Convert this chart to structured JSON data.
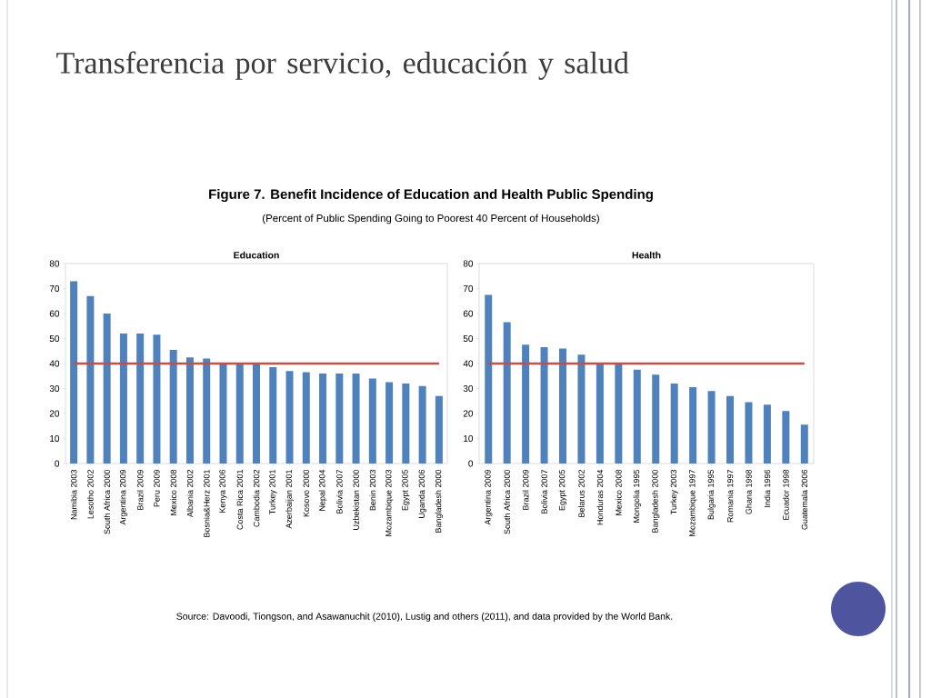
{
  "chart_data": [
    {
      "type": "bar",
      "title": "Education",
      "annotations": [
        "Transferencia por servicio, educación y salud",
        "Figure 7. Benefit Incidence of Education and Health Public Spending",
        "(Percent of Public Spending Going to Poorest 40 Percent of Households)",
        "Source: Davoodi, Tiongson, and Asawanuchit (2010), Lustig and others (2011), and data provided by the World Bank."
      ],
      "categories": [
        "Namibia 2003",
        "Lesotho 2002",
        "South Africa 2000",
        "Argentina 2009",
        "Brazil 2009",
        "Peru 2009",
        "Mexico 2008",
        "Albania 2002",
        "Bosnia&Herz 2001",
        "Kenya 2006",
        "Costa Rica 2001",
        "Cambodia 2002",
        "Turkey 2001",
        "Azerbaijan 2001",
        "Kosovo 2000",
        "Nepal 2004",
        "Bolivia 2007",
        "Uzbekistan 2000",
        "Benin 2003",
        "Mozambique 2003",
        "Egypt 2005",
        "Uganda 2006",
        "Bangladesh 2000"
      ],
      "values": [
        73,
        67,
        60,
        52,
        52,
        51.5,
        45.5,
        42.5,
        42,
        40,
        40,
        40,
        38.5,
        37,
        36.5,
        36,
        36,
        36,
        34,
        32.5,
        32,
        31,
        27
      ],
      "color": "#4f81bd",
      "ylim": [
        0,
        80
      ],
      "yticks": [
        0,
        10,
        20,
        30,
        40,
        50,
        60,
        70,
        80
      ],
      "ref_lines": [
        {
          "axis": "y",
          "value": 40,
          "color": "#c0504d"
        }
      ]
    },
    {
      "type": "bar",
      "title": "Health",
      "categories": [
        "Argentina 2009",
        "South Africa 2000",
        "Brazil 2009",
        "Bolivia 2007",
        "Egypt 2005",
        "Belarus 2002",
        "Honduras 2004",
        "Mexico 2008",
        "Mongolia 1995",
        "Bangladesh 2000",
        "Turkey 2003",
        "Mozambique 1997",
        "Bulgaria 1995",
        "Romania 1997",
        "Ghana 1998",
        "India 1996",
        "Ecuador 1998",
        "Guatemala 2006"
      ],
      "values": [
        67.5,
        56.5,
        47.5,
        46.5,
        46,
        43.5,
        40,
        40,
        37.5,
        35.5,
        32,
        30.5,
        29,
        27,
        24.5,
        23.5,
        21,
        15.5
      ],
      "color": "#4f81bd",
      "ylim": [
        0,
        80
      ],
      "yticks": [
        0,
        10,
        20,
        30,
        40,
        50,
        60,
        70,
        80
      ],
      "ref_lines": [
        {
          "axis": "y",
          "value": 40,
          "color": "#c0504d"
        }
      ]
    }
  ]
}
